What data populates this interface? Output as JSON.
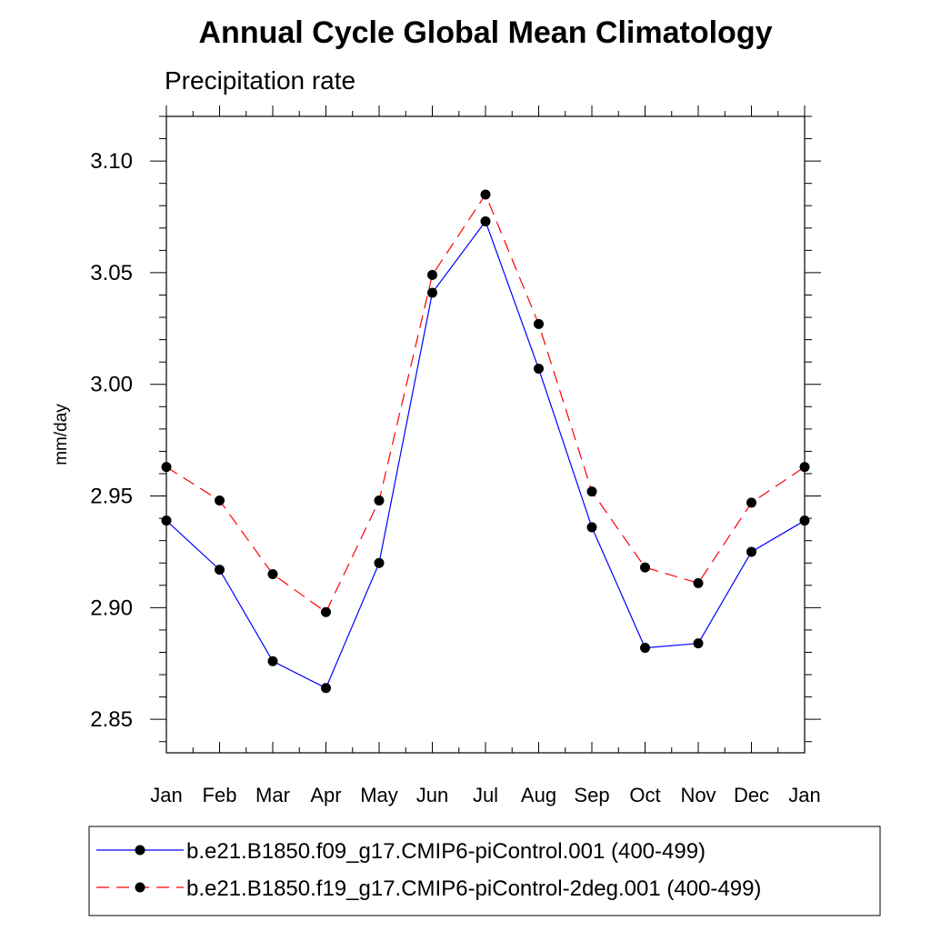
{
  "chart_data": {
    "type": "line",
    "title": "Annual Cycle Global Mean Climatology",
    "subtitle": "Precipitation rate",
    "xlabel": "",
    "ylabel": "mm/day",
    "categories": [
      "Jan",
      "Feb",
      "Mar",
      "Apr",
      "May",
      "Jun",
      "Jul",
      "Aug",
      "Sep",
      "Oct",
      "Nov",
      "Dec",
      "Jan"
    ],
    "ylim": [
      2.835,
      3.12
    ],
    "yticks": [
      2.85,
      2.9,
      2.95,
      3.0,
      3.05,
      3.1
    ],
    "ytick_labels": [
      "2.85",
      "2.90",
      "2.95",
      "3.00",
      "3.05",
      "3.10"
    ],
    "grid": false,
    "legend_position": "bottom",
    "series": [
      {
        "name": "b.e21.B1850.f09_g17.CMIP6-piControl.001 (400-499)",
        "color": "#0000ff",
        "style": "solid",
        "values": [
          2.939,
          2.917,
          2.876,
          2.864,
          2.92,
          3.041,
          3.073,
          3.007,
          2.936,
          2.882,
          2.884,
          2.925,
          2.939
        ]
      },
      {
        "name": "b.e21.B1850.f19_g17.CMIP6-piControl-2deg.001 (400-499)",
        "color": "#ff0000",
        "style": "dashed",
        "values": [
          2.963,
          2.948,
          2.915,
          2.898,
          2.948,
          3.049,
          3.085,
          3.027,
          2.952,
          2.918,
          2.911,
          2.947,
          2.963
        ]
      }
    ]
  }
}
